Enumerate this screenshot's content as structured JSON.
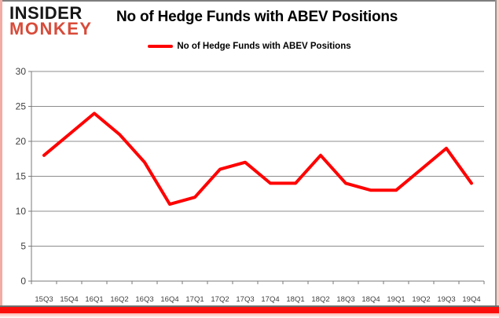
{
  "brand": {
    "line1": "INSIDER",
    "line2": "MONKEY"
  },
  "header": {
    "title": "No of Hedge Funds with ABEV Positions"
  },
  "legend": {
    "label": "No of Hedge Funds with ABEV Positions"
  },
  "chart_data": {
    "type": "line",
    "title": "No of Hedge Funds with ABEV Positions",
    "categories": [
      "15Q3",
      "15Q4",
      "16Q1",
      "16Q2",
      "16Q3",
      "16Q4",
      "17Q1",
      "17Q2",
      "17Q3",
      "17Q4",
      "18Q1",
      "18Q2",
      "18Q3",
      "18Q4",
      "19Q1",
      "19Q2",
      "19Q3",
      "19Q4"
    ],
    "series": [
      {
        "name": "No of Hedge Funds with ABEV Positions",
        "values": [
          18,
          21,
          24,
          21,
          17,
          11,
          12,
          16,
          17,
          14,
          14,
          18,
          14,
          13,
          13,
          16,
          19,
          14
        ]
      }
    ],
    "xlabel": "",
    "ylabel": "",
    "ylim": [
      0,
      30
    ],
    "yticks": [
      0,
      5,
      10,
      15,
      20,
      25,
      30
    ],
    "grid": true,
    "legend_position": "top-center",
    "line_color": "#ff0000",
    "line_width": 4,
    "grid_color": "#8c8c8c",
    "axis_color": "#7a7a7a",
    "tick_label_color": "#3f3f3f"
  },
  "colors": {
    "logo_black": "#161616",
    "logo_red": "#d84b3a",
    "accent_bar_red": "#fb0f0c",
    "frame_pink": "#f3aca3",
    "frame_gray": "#7e7e7e",
    "background": "#ffffff"
  }
}
